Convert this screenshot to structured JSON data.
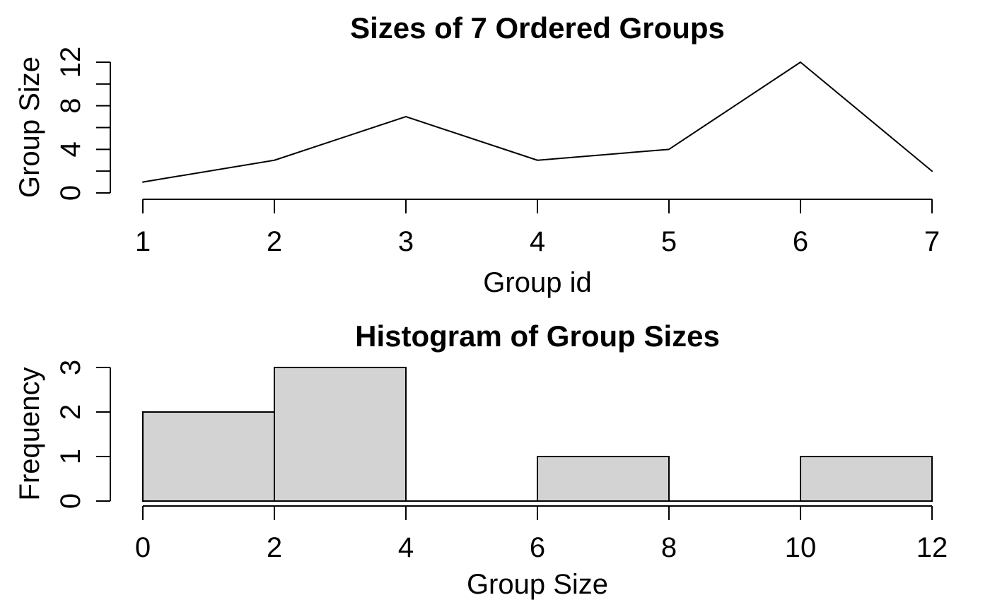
{
  "page": {
    "background": "#ffffff",
    "foreground": "#000000"
  },
  "chart_data": [
    {
      "id": "ordered-groups-line",
      "type": "line",
      "title": "Sizes of 7 Ordered Groups",
      "xlabel": "Group id",
      "ylabel": "Group Size",
      "x": [
        1,
        2,
        3,
        4,
        5,
        6,
        7
      ],
      "y": [
        1,
        3,
        7,
        3,
        4,
        12,
        2
      ],
      "xlim": [
        1,
        7
      ],
      "ylim": [
        0,
        12
      ],
      "xticks": [
        1,
        2,
        3,
        4,
        5,
        6,
        7
      ],
      "ytick_marks": [
        0,
        2,
        4,
        6,
        8,
        10,
        12
      ],
      "ytick_labels": [
        0,
        4,
        8,
        12
      ],
      "line_color": "#000000",
      "grid": false,
      "legend": null
    },
    {
      "id": "group-sizes-hist",
      "type": "bar",
      "title": "Histogram of Group Sizes",
      "xlabel": "Group Size",
      "ylabel": "Frequency",
      "bins": [
        {
          "from": 0,
          "to": 2,
          "count": 2
        },
        {
          "from": 2,
          "to": 4,
          "count": 3
        },
        {
          "from": 4,
          "to": 6,
          "count": 0
        },
        {
          "from": 6,
          "to": 8,
          "count": 1
        },
        {
          "from": 8,
          "to": 10,
          "count": 0
        },
        {
          "from": 10,
          "to": 12,
          "count": 1
        }
      ],
      "xlim": [
        0,
        12
      ],
      "ylim": [
        0,
        3
      ],
      "xticks": [
        0,
        2,
        4,
        6,
        8,
        10,
        12
      ],
      "yticks": [
        0,
        1,
        2,
        3
      ],
      "bar_fill": "#d3d3d3",
      "bar_stroke": "#000000",
      "grid": false,
      "legend": null
    }
  ]
}
